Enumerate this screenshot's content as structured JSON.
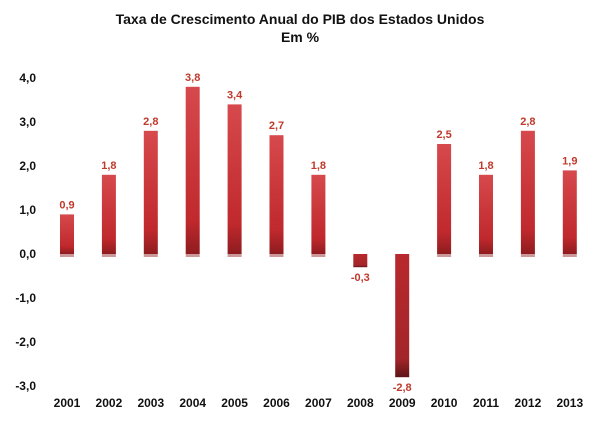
{
  "chart_data": {
    "type": "bar",
    "title": "Taxa de Crescimento Anual do PIB dos Estados Unidos",
    "subtitle": "Em %",
    "categories": [
      "2001",
      "2002",
      "2003",
      "2004",
      "2005",
      "2006",
      "2007",
      "2008",
      "2009",
      "2010",
      "2011",
      "2012",
      "2013"
    ],
    "values": [
      0.9,
      1.8,
      2.8,
      3.8,
      3.4,
      2.7,
      1.8,
      -0.3,
      -2.8,
      2.5,
      1.8,
      2.8,
      1.9
    ],
    "data_labels": [
      "0,9",
      "1,8",
      "2,8",
      "3,8",
      "3,4",
      "2,7",
      "1,8",
      "-0,3",
      "-2,8",
      "2,5",
      "1,8",
      "2,8",
      "1,9"
    ],
    "yticks": [
      4,
      3,
      2,
      1,
      0,
      -1,
      -2,
      -3
    ],
    "ytick_labels": [
      "4,0",
      "3,0",
      "2,0",
      "1,0",
      "0,0",
      "-1,0",
      "-2,0",
      "-3,0"
    ],
    "ylim": [
      -3,
      4
    ],
    "xlabel": "",
    "ylabel": "",
    "grid": false,
    "legend": "none",
    "colors": {
      "bar": "#c8373a",
      "bar_dark": "#8e1c1f",
      "label": "#c0392b",
      "axis_text": "#111111"
    }
  }
}
